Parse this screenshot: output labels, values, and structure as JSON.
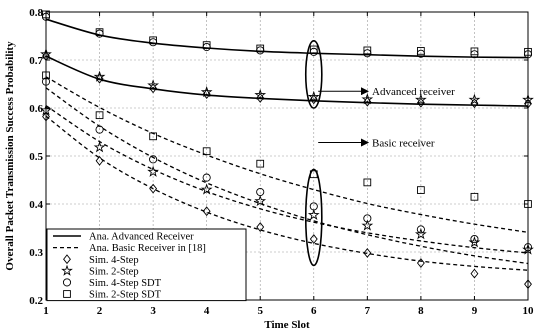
{
  "chart_data": {
    "type": "line",
    "xlabel": "Time Slot",
    "ylabel": "Overall Packet Transmission Success Probability",
    "xlim": [
      1,
      10
    ],
    "ylim": [
      0.2,
      0.8
    ],
    "x_ticks": [
      "1",
      "2",
      "3",
      "4",
      "5",
      "6",
      "7",
      "8",
      "9",
      "10"
    ],
    "y_ticks": [
      "0.2",
      "0.3",
      "0.4",
      "0.5",
      "0.6",
      "0.7",
      "0.8"
    ],
    "grid": "dashed",
    "legend_position": "bottom-left",
    "x": [
      1,
      2,
      3,
      4,
      5,
      6,
      7,
      8,
      9,
      10
    ],
    "series": [
      {
        "name": "Ana. Advanced Receiver",
        "legend_ref": 0,
        "group": "advanced",
        "style": "solid",
        "marker": "none",
        "values": [
          0.785,
          0.752,
          0.735,
          0.725,
          0.718,
          0.714,
          0.711,
          0.708,
          0.706,
          0.705
        ]
      },
      {
        "name": "Ana. Advanced Receiver",
        "legend_ref": 0,
        "group": "advanced",
        "style": "solid",
        "marker": "none",
        "values": [
          0.708,
          0.66,
          0.64,
          0.627,
          0.62,
          0.615,
          0.611,
          0.608,
          0.606,
          0.604
        ]
      },
      {
        "name": "Ana. Basic Receiver in [18]",
        "legend_ref": 1,
        "group": "basic",
        "style": "dashed",
        "marker": "none",
        "values": [
          0.665,
          0.601,
          0.547,
          0.502,
          0.463,
          0.43,
          0.401,
          0.378,
          0.358,
          0.341
        ]
      },
      {
        "name": "Ana. Basic Receiver in [18]",
        "legend_ref": 1,
        "group": "basic",
        "style": "dashed",
        "marker": "none",
        "values": [
          0.642,
          0.562,
          0.497,
          0.444,
          0.401,
          0.365,
          0.336,
          0.312,
          0.292,
          0.276
        ]
      },
      {
        "name": "Ana. Basic Receiver in [18]",
        "legend_ref": 1,
        "group": "basic",
        "style": "dashed",
        "marker": "none",
        "values": [
          0.605,
          0.53,
          0.472,
          0.426,
          0.39,
          0.362,
          0.34,
          0.323,
          0.309,
          0.298
        ]
      },
      {
        "name": "Ana. Basic Receiver in [18]",
        "legend_ref": 1,
        "group": "basic",
        "style": "dashed",
        "marker": "none",
        "values": [
          0.583,
          0.496,
          0.432,
          0.383,
          0.346,
          0.318,
          0.297,
          0.281,
          0.27,
          0.262
        ]
      },
      {
        "name": "Sim. 4-Step",
        "legend_ref": 2,
        "style": "none",
        "marker": "diamond",
        "values": [
          0.582,
          0.49,
          0.432,
          0.385,
          0.352,
          0.327,
          0.298,
          0.277,
          0.255,
          0.233
        ]
      },
      {
        "name": "Sim. 2-Step",
        "legend_ref": 3,
        "style": "none",
        "marker": "star",
        "values": [
          0.595,
          0.518,
          0.467,
          0.43,
          0.406,
          0.377,
          0.355,
          0.337,
          0.32,
          0.305
        ]
      },
      {
        "name": "Sim. 4-Step SDT",
        "legend_ref": 4,
        "style": "none",
        "marker": "circle",
        "values": [
          0.655,
          0.555,
          0.493,
          0.455,
          0.425,
          0.395,
          0.37,
          0.347,
          0.327,
          0.31
        ]
      },
      {
        "name": "Sim. 2-Step SDT",
        "legend_ref": 5,
        "style": "none",
        "marker": "square",
        "values": [
          0.668,
          0.585,
          0.541,
          0.51,
          0.484,
          0.462,
          0.445,
          0.429,
          0.415,
          0.4
        ]
      },
      {
        "name": "Sim. 2-Step",
        "legend_ref": 3,
        "style": "none",
        "marker": "star",
        "values": [
          0.712,
          0.665,
          0.647,
          0.633,
          0.627,
          0.623,
          0.618,
          0.617,
          0.617,
          0.617
        ]
      },
      {
        "name": "Sim. 4-Step",
        "legend_ref": 2,
        "style": "none",
        "marker": "diamond",
        "values": [
          0.708,
          0.661,
          0.641,
          0.629,
          0.621,
          0.618,
          0.613,
          0.611,
          0.61,
          0.609
        ]
      },
      {
        "name": "Sim. 2-Step SDT",
        "legend_ref": 5,
        "style": "none",
        "marker": "square",
        "values": [
          0.795,
          0.758,
          0.741,
          0.731,
          0.724,
          0.722,
          0.72,
          0.719,
          0.718,
          0.717
        ]
      },
      {
        "name": "Sim. 4-Step SDT",
        "legend_ref": 4,
        "style": "none",
        "marker": "circle",
        "values": [
          0.79,
          0.755,
          0.737,
          0.727,
          0.72,
          0.717,
          0.714,
          0.713,
          0.712,
          0.712
        ]
      }
    ],
    "legend": [
      {
        "label": "Ana. Advanced Receiver",
        "style": "solid",
        "marker": "none"
      },
      {
        "label": "Ana. Basic Receiver in [18]",
        "style": "dashed",
        "marker": "none"
      },
      {
        "label": "Sim. 4-Step",
        "style": "none",
        "marker": "diamond"
      },
      {
        "label": "Sim. 2-Step",
        "style": "none",
        "marker": "star"
      },
      {
        "label": "Sim. 4-Step SDT",
        "style": "none",
        "marker": "circle"
      },
      {
        "label": "Sim. 2-Step SDT",
        "style": "none",
        "marker": "square"
      }
    ],
    "annotations": [
      {
        "text": "Advanced receiver",
        "ellipse_center": [
          6,
          0.67
        ],
        "ellipse_half_width": 0.15,
        "ellipse_half_height": 0.07,
        "arrow_to": [
          7.05,
          0.635
        ]
      },
      {
        "text": "Basic receiver",
        "ellipse_center": [
          6,
          0.372
        ],
        "ellipse_half_width": 0.15,
        "ellipse_half_height": 0.1,
        "arrow_to": [
          7.05,
          0.528
        ]
      }
    ]
  }
}
